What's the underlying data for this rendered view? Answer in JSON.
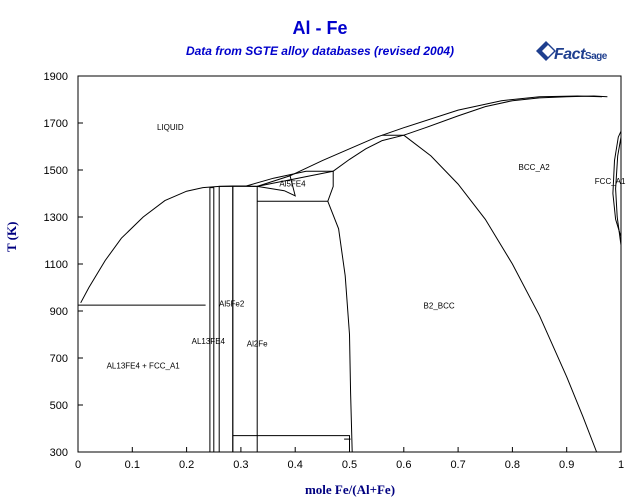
{
  "chart_data": {
    "type": "line",
    "title": "Al - Fe",
    "subtitle": "Data from SGTE alloy databases (revised 2004)",
    "xlabel": "mole Fe/(Al+Fe)",
    "ylabel": "T (K)",
    "xlim": [
      0,
      1
    ],
    "ylim": [
      300,
      1900
    ],
    "xticks": [
      "0",
      "0.1",
      "0.2",
      "0.3",
      "0.4",
      "0.5",
      "0.6",
      "0.7",
      "0.8",
      "0.9",
      "1"
    ],
    "yticks": [
      "300",
      "500",
      "700",
      "900",
      "1100",
      "1300",
      "1500",
      "1700",
      "1900"
    ],
    "grid": false,
    "region_labels": [
      {
        "text": "LIQUID",
        "x": 0.17,
        "y": 1670
      },
      {
        "text": "BCC_A2",
        "x": 0.84,
        "y": 1500
      },
      {
        "text": "FCC_A1",
        "x": 0.98,
        "y": 1440
      },
      {
        "text": "Al5FE4",
        "x": 0.395,
        "y": 1430
      },
      {
        "text": "Al5Fe2",
        "x": 0.283,
        "y": 920
      },
      {
        "text": "B2_BCC",
        "x": 0.665,
        "y": 910
      },
      {
        "text": "AL13FE4",
        "x": 0.24,
        "y": 760
      },
      {
        "text": "Al2Fe",
        "x": 0.33,
        "y": 750
      },
      {
        "text": "AL13FE4 + FCC_A1",
        "x": 0.12,
        "y": 655
      }
    ],
    "series": [
      {
        "values": [
          [
            0.005,
            935
          ],
          [
            0.02,
            1000
          ],
          [
            0.05,
            1115
          ],
          [
            0.08,
            1210
          ],
          [
            0.12,
            1300
          ],
          [
            0.16,
            1370
          ],
          [
            0.2,
            1410
          ],
          [
            0.23,
            1425
          ],
          [
            0.26,
            1430
          ],
          [
            0.285,
            1432
          ],
          [
            0.31,
            1432
          ],
          [
            0.33,
            1430
          ]
        ]
      },
      {
        "values": [
          [
            0.33,
            1430
          ],
          [
            0.39,
            1475
          ],
          [
            0.45,
            1540
          ],
          [
            0.5,
            1590
          ],
          [
            0.55,
            1640
          ],
          [
            0.6,
            1680
          ],
          [
            0.7,
            1755
          ],
          [
            0.78,
            1795
          ],
          [
            0.85,
            1812
          ],
          [
            0.92,
            1815
          ],
          [
            0.965,
            1812
          ]
        ]
      },
      {
        "values": [
          [
            0.31,
            1432
          ],
          [
            0.36,
            1465
          ],
          [
            0.42,
            1495
          ],
          [
            0.47,
            1495
          ]
        ]
      },
      {
        "values": [
          [
            0.47,
            1495
          ],
          [
            0.5,
            1545
          ],
          [
            0.53,
            1590
          ],
          [
            0.56,
            1625
          ],
          [
            0.6,
            1648
          ],
          [
            0.64,
            1680
          ],
          [
            0.7,
            1730
          ],
          [
            0.75,
            1770
          ],
          [
            0.8,
            1795
          ],
          [
            0.85,
            1807
          ],
          [
            0.9,
            1812
          ],
          [
            0.95,
            1815
          ],
          [
            0.975,
            1812
          ]
        ]
      },
      {
        "values": [
          [
            0.56,
            1648
          ],
          [
            0.6,
            1648
          ]
        ]
      },
      {
        "values": [
          [
            0.6,
            1648
          ],
          [
            0.65,
            1560
          ],
          [
            0.7,
            1440
          ],
          [
            0.75,
            1290
          ],
          [
            0.8,
            1100
          ],
          [
            0.85,
            880
          ],
          [
            0.9,
            620
          ],
          [
            0.93,
            450
          ],
          [
            0.955,
            300
          ]
        ]
      },
      {
        "values": [
          [
            0.33,
            1430
          ],
          [
            0.38,
            1412
          ],
          [
            0.4,
            1390
          ],
          [
            0.39,
            1480
          ]
        ]
      },
      {
        "values": [
          [
            0.33,
            1430
          ],
          [
            0.47,
            1495
          ],
          [
            0.47,
            1430
          ],
          [
            0.46,
            1367
          ],
          [
            0.33,
            1367
          ]
        ]
      },
      {
        "values": [
          [
            0.46,
            1367
          ],
          [
            0.48,
            1250
          ],
          [
            0.492,
            1050
          ],
          [
            0.5,
            800
          ],
          [
            0.502,
            550
          ],
          [
            0.505,
            300
          ]
        ]
      },
      {
        "values": [
          [
            0.0,
            925
          ],
          [
            0.235,
            925
          ]
        ]
      },
      {
        "values": [
          [
            0.243,
            300
          ],
          [
            0.243,
            1425
          ],
          [
            0.25,
            1425
          ],
          [
            0.25,
            300
          ]
        ]
      },
      {
        "values": [
          [
            0.26,
            300
          ],
          [
            0.26,
            1430
          ],
          [
            0.285,
            1430
          ],
          [
            0.285,
            300
          ]
        ]
      },
      {
        "values": [
          [
            0.285,
            300
          ],
          [
            0.285,
            1430
          ],
          [
            0.33,
            1430
          ],
          [
            0.33,
            300
          ]
        ]
      },
      {
        "values": [
          [
            0.285,
            370
          ],
          [
            0.5,
            370
          ],
          [
            0.5,
            300
          ]
        ]
      },
      {
        "values": [
          [
            0.49,
            355
          ],
          [
            0.502,
            355
          ]
        ]
      },
      {
        "values": [
          [
            1.0,
            1215
          ],
          [
            0.99,
            1290
          ],
          [
            0.985,
            1400
          ],
          [
            0.988,
            1540
          ],
          [
            0.995,
            1640
          ],
          [
            1.0,
            1665
          ]
        ]
      },
      {
        "values": [
          [
            1.0,
            1180
          ],
          [
            0.993,
            1300
          ],
          [
            0.99,
            1420
          ],
          [
            0.994,
            1560
          ],
          [
            1.0,
            1640
          ]
        ]
      }
    ]
  }
}
